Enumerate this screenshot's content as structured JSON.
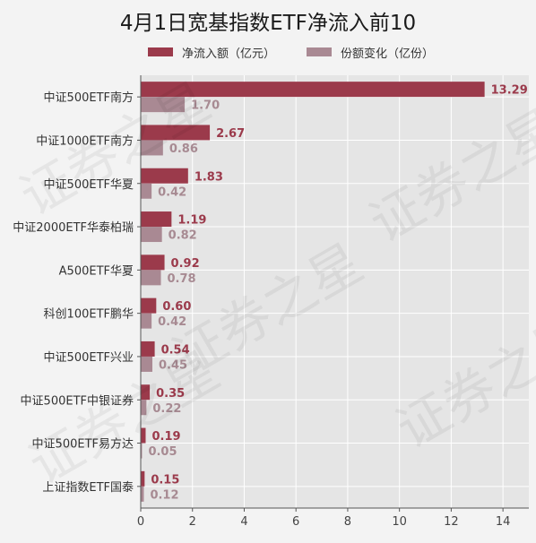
{
  "title": "4月1日宽基指数ETF净流入前10",
  "legend": [
    {
      "label": "净流入额（亿元）",
      "color": "#9b3a4b"
    },
    {
      "label": "份额变化（亿份）",
      "color": "#a98993"
    }
  ],
  "watermark": "证券之星",
  "chart_data": {
    "type": "bar",
    "orientation": "horizontal",
    "categories": [
      "中证500ETF南方",
      "中证1000ETF南方",
      "中证500ETF华夏",
      "中证2000ETF华泰柏瑞",
      "A500ETF华夏",
      "科创100ETF鹏华",
      "中证500ETF兴业",
      "中证500ETF中银证券",
      "中证500ETF易方达",
      "上证指数ETF国泰"
    ],
    "series": [
      {
        "name": "净流入额（亿元）",
        "values": [
          13.29,
          2.67,
          1.83,
          1.19,
          0.92,
          0.6,
          0.54,
          0.35,
          0.19,
          0.15
        ],
        "labels": [
          "13.29",
          "2.67",
          "1.83",
          "1.19",
          "0.92",
          "0.60",
          "0.54",
          "0.35",
          "0.19",
          "0.15"
        ],
        "color": "#9b3a4b",
        "label_color": "#9b3a4b"
      },
      {
        "name": "份额变化（亿份）",
        "values": [
          1.7,
          0.86,
          0.42,
          0.82,
          0.78,
          0.42,
          0.45,
          0.22,
          0.05,
          0.12
        ],
        "labels": [
          "1.70",
          "0.86",
          "0.42",
          "0.82",
          "0.78",
          "0.42",
          "0.45",
          "0.22",
          "0.05",
          "0.12"
        ],
        "color": "#a98993",
        "label_color": "#a78a92"
      }
    ],
    "xlim": [
      0,
      15
    ],
    "xticks": [
      0,
      2,
      4,
      6,
      8,
      10,
      12,
      14
    ],
    "grid": true,
    "legend_position": "top"
  }
}
